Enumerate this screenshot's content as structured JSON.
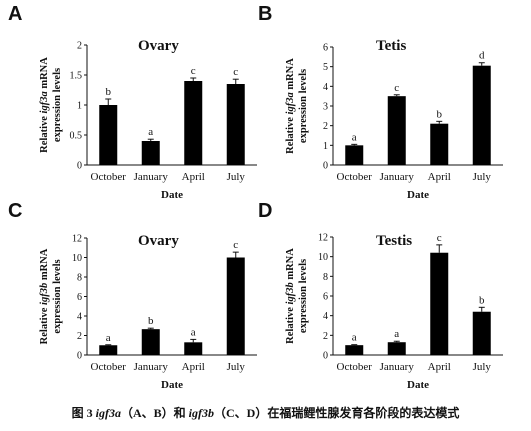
{
  "figure": {
    "caption": {
      "prefix": "图 3 ",
      "gene_a": "igf3a",
      "part1": "（A、B）和 ",
      "gene_b": "igf3b",
      "part2": "（C、D）在福瑞鲤性腺发育各阶段的表达模式"
    }
  },
  "chart_data": [
    {
      "panel": "A",
      "type": "bar",
      "title": "Ovary",
      "xlabel": "Date",
      "ylabel_line1_pre": "Relative ",
      "ylabel_gene": "igf3a",
      "ylabel_line1_post": " mRNA",
      "ylabel_line2": "expression levels",
      "categories": [
        "October",
        "January",
        "April",
        "July"
      ],
      "values": [
        1.0,
        0.4,
        1.4,
        1.35
      ],
      "errors": [
        0.1,
        0.03,
        0.05,
        0.08
      ],
      "significance": [
        "b",
        "a",
        "c",
        "c"
      ],
      "ylim": [
        0,
        2
      ],
      "yticks": [
        0,
        0.5,
        1,
        1.5,
        2
      ],
      "ytick_labels": [
        "0",
        "0.5",
        "1",
        "1.5",
        "2"
      ],
      "color": "#000000",
      "grid": false
    },
    {
      "panel": "B",
      "type": "bar",
      "title": "Tetis",
      "xlabel": "Date",
      "ylabel_line1_pre": "Relative ",
      "ylabel_gene": "igf3a",
      "ylabel_line1_post": " mRNA",
      "ylabel_line2": "expression levels",
      "categories": [
        "October",
        "January",
        "April",
        "July"
      ],
      "values": [
        1.0,
        3.5,
        2.1,
        5.05
      ],
      "errors": [
        0.05,
        0.07,
        0.12,
        0.15
      ],
      "significance": [
        "a",
        "c",
        "b",
        "d"
      ],
      "ylim": [
        0,
        6
      ],
      "yticks": [
        0,
        1,
        2,
        3,
        4,
        5,
        6
      ],
      "ytick_labels": [
        "0",
        "1",
        "2",
        "3",
        "4",
        "5",
        "6"
      ],
      "color": "#000000",
      "grid": false
    },
    {
      "panel": "C",
      "type": "bar",
      "title": "Ovary",
      "xlabel": "Date",
      "ylabel_line1_pre": "Relative ",
      "ylabel_gene": "igf3b",
      "ylabel_line1_post": " mRNA",
      "ylabel_line2": "expression levels",
      "categories": [
        "October",
        "January",
        "April",
        "July"
      ],
      "values": [
        1.0,
        2.65,
        1.3,
        10.0
      ],
      "errors": [
        0.05,
        0.1,
        0.3,
        0.55
      ],
      "significance": [
        "a",
        "b",
        "a",
        "c"
      ],
      "ylim": [
        0,
        12
      ],
      "yticks": [
        0,
        2,
        4,
        6,
        8,
        10,
        12
      ],
      "ytick_labels": [
        "0",
        "2",
        "4",
        "6",
        "8",
        "10",
        "12"
      ],
      "color": "#000000",
      "grid": false
    },
    {
      "panel": "D",
      "type": "bar",
      "title": "Testis",
      "xlabel": "Date",
      "ylabel_line1_pre": "Relative ",
      "ylabel_gene": "igf3b",
      "ylabel_line1_post": " mRNA",
      "ylabel_line2": "expression levels",
      "categories": [
        "October",
        "January",
        "April",
        "July"
      ],
      "values": [
        1.0,
        1.3,
        10.4,
        4.4
      ],
      "errors": [
        0.05,
        0.1,
        0.8,
        0.45
      ],
      "significance": [
        "a",
        "a",
        "c",
        "b"
      ],
      "ylim": [
        0,
        12
      ],
      "yticks": [
        0,
        2,
        4,
        6,
        8,
        10,
        12
      ],
      "ytick_labels": [
        "0",
        "2",
        "4",
        "6",
        "8",
        "10",
        "12"
      ],
      "color": "#000000",
      "grid": false
    }
  ]
}
